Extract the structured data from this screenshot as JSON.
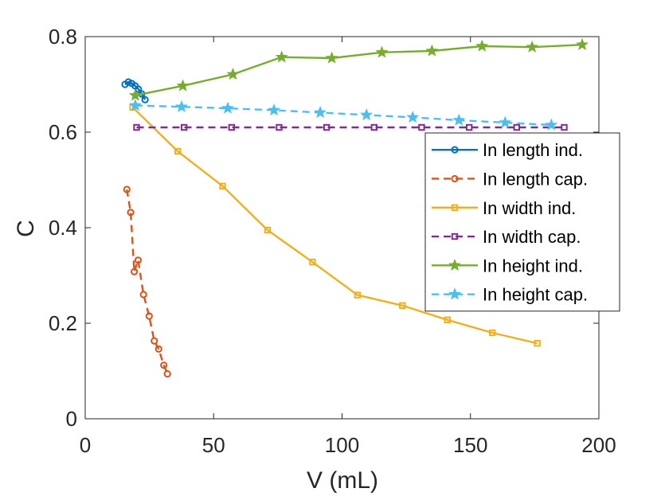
{
  "chart_data": {
    "type": "line",
    "title": "",
    "xlabel": "V (mL)",
    "ylabel": "C",
    "xlim": [
      0,
      200
    ],
    "ylim": [
      0,
      0.8
    ],
    "xticks": [
      0,
      50,
      100,
      150,
      200
    ],
    "xtick_labels": [
      "0",
      "50",
      "100",
      "150",
      "200"
    ],
    "yticks": [
      0,
      0.2,
      0.4,
      0.6,
      0.8
    ],
    "ytick_labels": [
      "0",
      "0.2",
      "0.4",
      "0.6",
      "0.8"
    ],
    "grid": false,
    "legend_position": "right",
    "series": [
      {
        "name": "In length ind.",
        "color": "#0072BD",
        "line_style": "solid",
        "marker": "circle",
        "x": [
          15.5,
          16.8,
          18.1,
          19.4,
          20.7,
          22.0,
          23.3
        ],
        "y": [
          0.7,
          0.705,
          0.702,
          0.697,
          0.69,
          0.68,
          0.668
        ]
      },
      {
        "name": "In length cap.",
        "color": "#D95319",
        "line_style": "dashed",
        "marker": "circle",
        "x": [
          16.2,
          17.7,
          19.1,
          20.6,
          22.7,
          24.9,
          26.9,
          28.6,
          30.6,
          32.0
        ],
        "y": [
          0.48,
          0.432,
          0.308,
          0.332,
          0.26,
          0.215,
          0.163,
          0.146,
          0.112,
          0.094
        ]
      },
      {
        "name": "In width ind.",
        "color": "#EDB120",
        "line_style": "solid",
        "marker": "square",
        "x": [
          18.5,
          36.0,
          53.5,
          71.0,
          88.5,
          106.0,
          123.5,
          141.0,
          158.5,
          176.0
        ],
        "y": [
          0.652,
          0.56,
          0.487,
          0.395,
          0.328,
          0.259,
          0.237,
          0.207,
          0.18,
          0.158
        ]
      },
      {
        "name": "In width cap.",
        "color": "#7E2F8E",
        "line_style": "dashed",
        "marker": "square",
        "x": [
          20.0,
          38.5,
          57.0,
          75.5,
          94.0,
          112.5,
          131.0,
          149.5,
          168.0,
          186.5
        ],
        "y": [
          0.61,
          0.61,
          0.61,
          0.61,
          0.61,
          0.61,
          0.61,
          0.61,
          0.61,
          0.61
        ]
      },
      {
        "name": "In height ind.",
        "color": "#77AC30",
        "line_style": "solid",
        "marker": "star",
        "x": [
          19.5,
          38.0,
          57.5,
          76.5,
          96.0,
          115.5,
          135.0,
          154.5,
          174.0,
          193.5
        ],
        "y": [
          0.677,
          0.697,
          0.721,
          0.757,
          0.755,
          0.767,
          0.77,
          0.78,
          0.778,
          0.783
        ]
      },
      {
        "name": "In height cap.",
        "color": "#4DBEEE",
        "line_style": "dashed",
        "marker": "star",
        "x": [
          19.5,
          37.5,
          55.5,
          73.5,
          91.5,
          109.5,
          127.5,
          145.5,
          163.5,
          181.5
        ],
        "y": [
          0.656,
          0.653,
          0.65,
          0.646,
          0.641,
          0.636,
          0.631,
          0.625,
          0.62,
          0.615
        ]
      }
    ]
  }
}
